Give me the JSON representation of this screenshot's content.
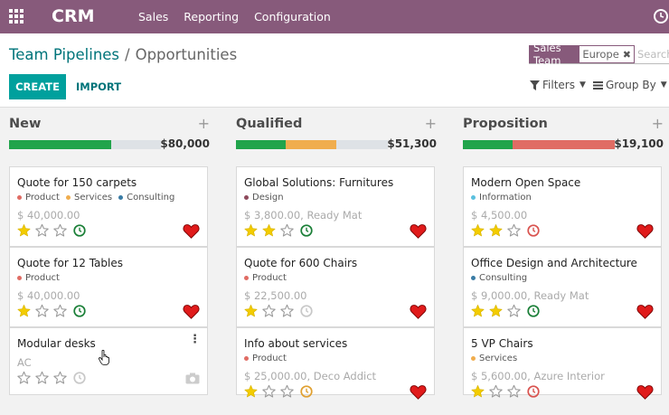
{
  "nav": {
    "brand": "CRM",
    "menu": [
      "Sales",
      "Reporting",
      "Configuration"
    ]
  },
  "breadcrumb": {
    "parent": "Team Pipelines",
    "separator": "/",
    "current": "Opportunities"
  },
  "buttons": {
    "create": "CREATE",
    "import": "IMPORT"
  },
  "search": {
    "facet_label": "Sales Team",
    "facet_value": "Europe",
    "placeholder": "Search..."
  },
  "filters_label": "Filters",
  "groupby_label": "Group By",
  "colors": {
    "green": "#21a44b",
    "orange": "#f0ad4e",
    "red": "#e06c64",
    "grey": "#dee2e6",
    "brand": "#875a7b",
    "teal": "#00a09d"
  },
  "columns": [
    {
      "title": "New",
      "total": "$80,000",
      "progress": [
        {
          "color": "green",
          "fraction": 0.67
        },
        {
          "color": "grey",
          "fraction": 0.33
        }
      ],
      "cards": [
        {
          "title": "Quote for 150 carpets",
          "tags": [
            {
              "label": "Product",
              "color": "#e06c64"
            },
            {
              "label": "Services",
              "color": "#f0ad4e"
            },
            {
              "label": "Consulting",
              "color": "#3a7ca5"
            }
          ],
          "amount": "$ 40,000.00",
          "stars": 1,
          "activity": "green-clock-icon",
          "heart": true
        },
        {
          "title": "Quote for 12 Tables",
          "tags": [
            {
              "label": "Product",
              "color": "#e06c64"
            }
          ],
          "amount": "$ 40,000.00",
          "stars": 1,
          "activity": "green-clock-icon",
          "heart": true
        },
        {
          "title": "Modular desks",
          "tags": [],
          "amount": "AC",
          "stars": 0,
          "activity": "grey-clock-icon",
          "heart": false
        }
      ]
    },
    {
      "title": "Qualified",
      "total": "$51,300",
      "progress": [
        {
          "color": "green",
          "fraction": 0.33
        },
        {
          "color": "orange",
          "fraction": 0.33
        },
        {
          "color": "grey",
          "fraction": 0.34
        }
      ],
      "cards": [
        {
          "title": "Global Solutions: Furnitures",
          "tags": [
            {
              "label": "Design",
              "color": "#8e4a5c"
            }
          ],
          "amount": "$ 3,800.00, Ready Mat",
          "stars": 2,
          "activity": "green-clock-icon",
          "heart": true
        },
        {
          "title": "Quote for 600 Chairs",
          "tags": [
            {
              "label": "Product",
              "color": "#e06c64"
            }
          ],
          "amount": "$ 22,500.00",
          "stars": 1,
          "activity": "grey-clock-icon",
          "heart": true
        },
        {
          "title": "Info about services",
          "tags": [
            {
              "label": "Product",
              "color": "#e06c64"
            }
          ],
          "amount": "$ 25,000.00, Deco Addict",
          "stars": 1,
          "activity": "orange-clock-icon",
          "heart": true
        }
      ]
    },
    {
      "title": "Proposition",
      "total": "$19,100",
      "progress": [
        {
          "color": "green",
          "fraction": 0.33
        },
        {
          "color": "red",
          "fraction": 0.67
        }
      ],
      "cards": [
        {
          "title": "Modern Open Space",
          "tags": [
            {
              "label": "Information",
              "color": "#5bc0de"
            }
          ],
          "amount": "$ 4,500.00",
          "stars": 2,
          "activity": "red-clock-icon",
          "heart": true
        },
        {
          "title": "Office Design and Architecture",
          "tags": [
            {
              "label": "Consulting",
              "color": "#3a7ca5"
            }
          ],
          "amount": "$ 9,000.00, Ready Mat",
          "stars": 2,
          "activity": "green-clock-icon",
          "heart": true
        },
        {
          "title": "5 VP Chairs",
          "tags": [
            {
              "label": "Services",
              "color": "#f0ad4e"
            }
          ],
          "amount": "$ 5,600.00, Azure Interior",
          "stars": 1,
          "activity": "red-clock-icon",
          "heart": true
        }
      ]
    }
  ]
}
